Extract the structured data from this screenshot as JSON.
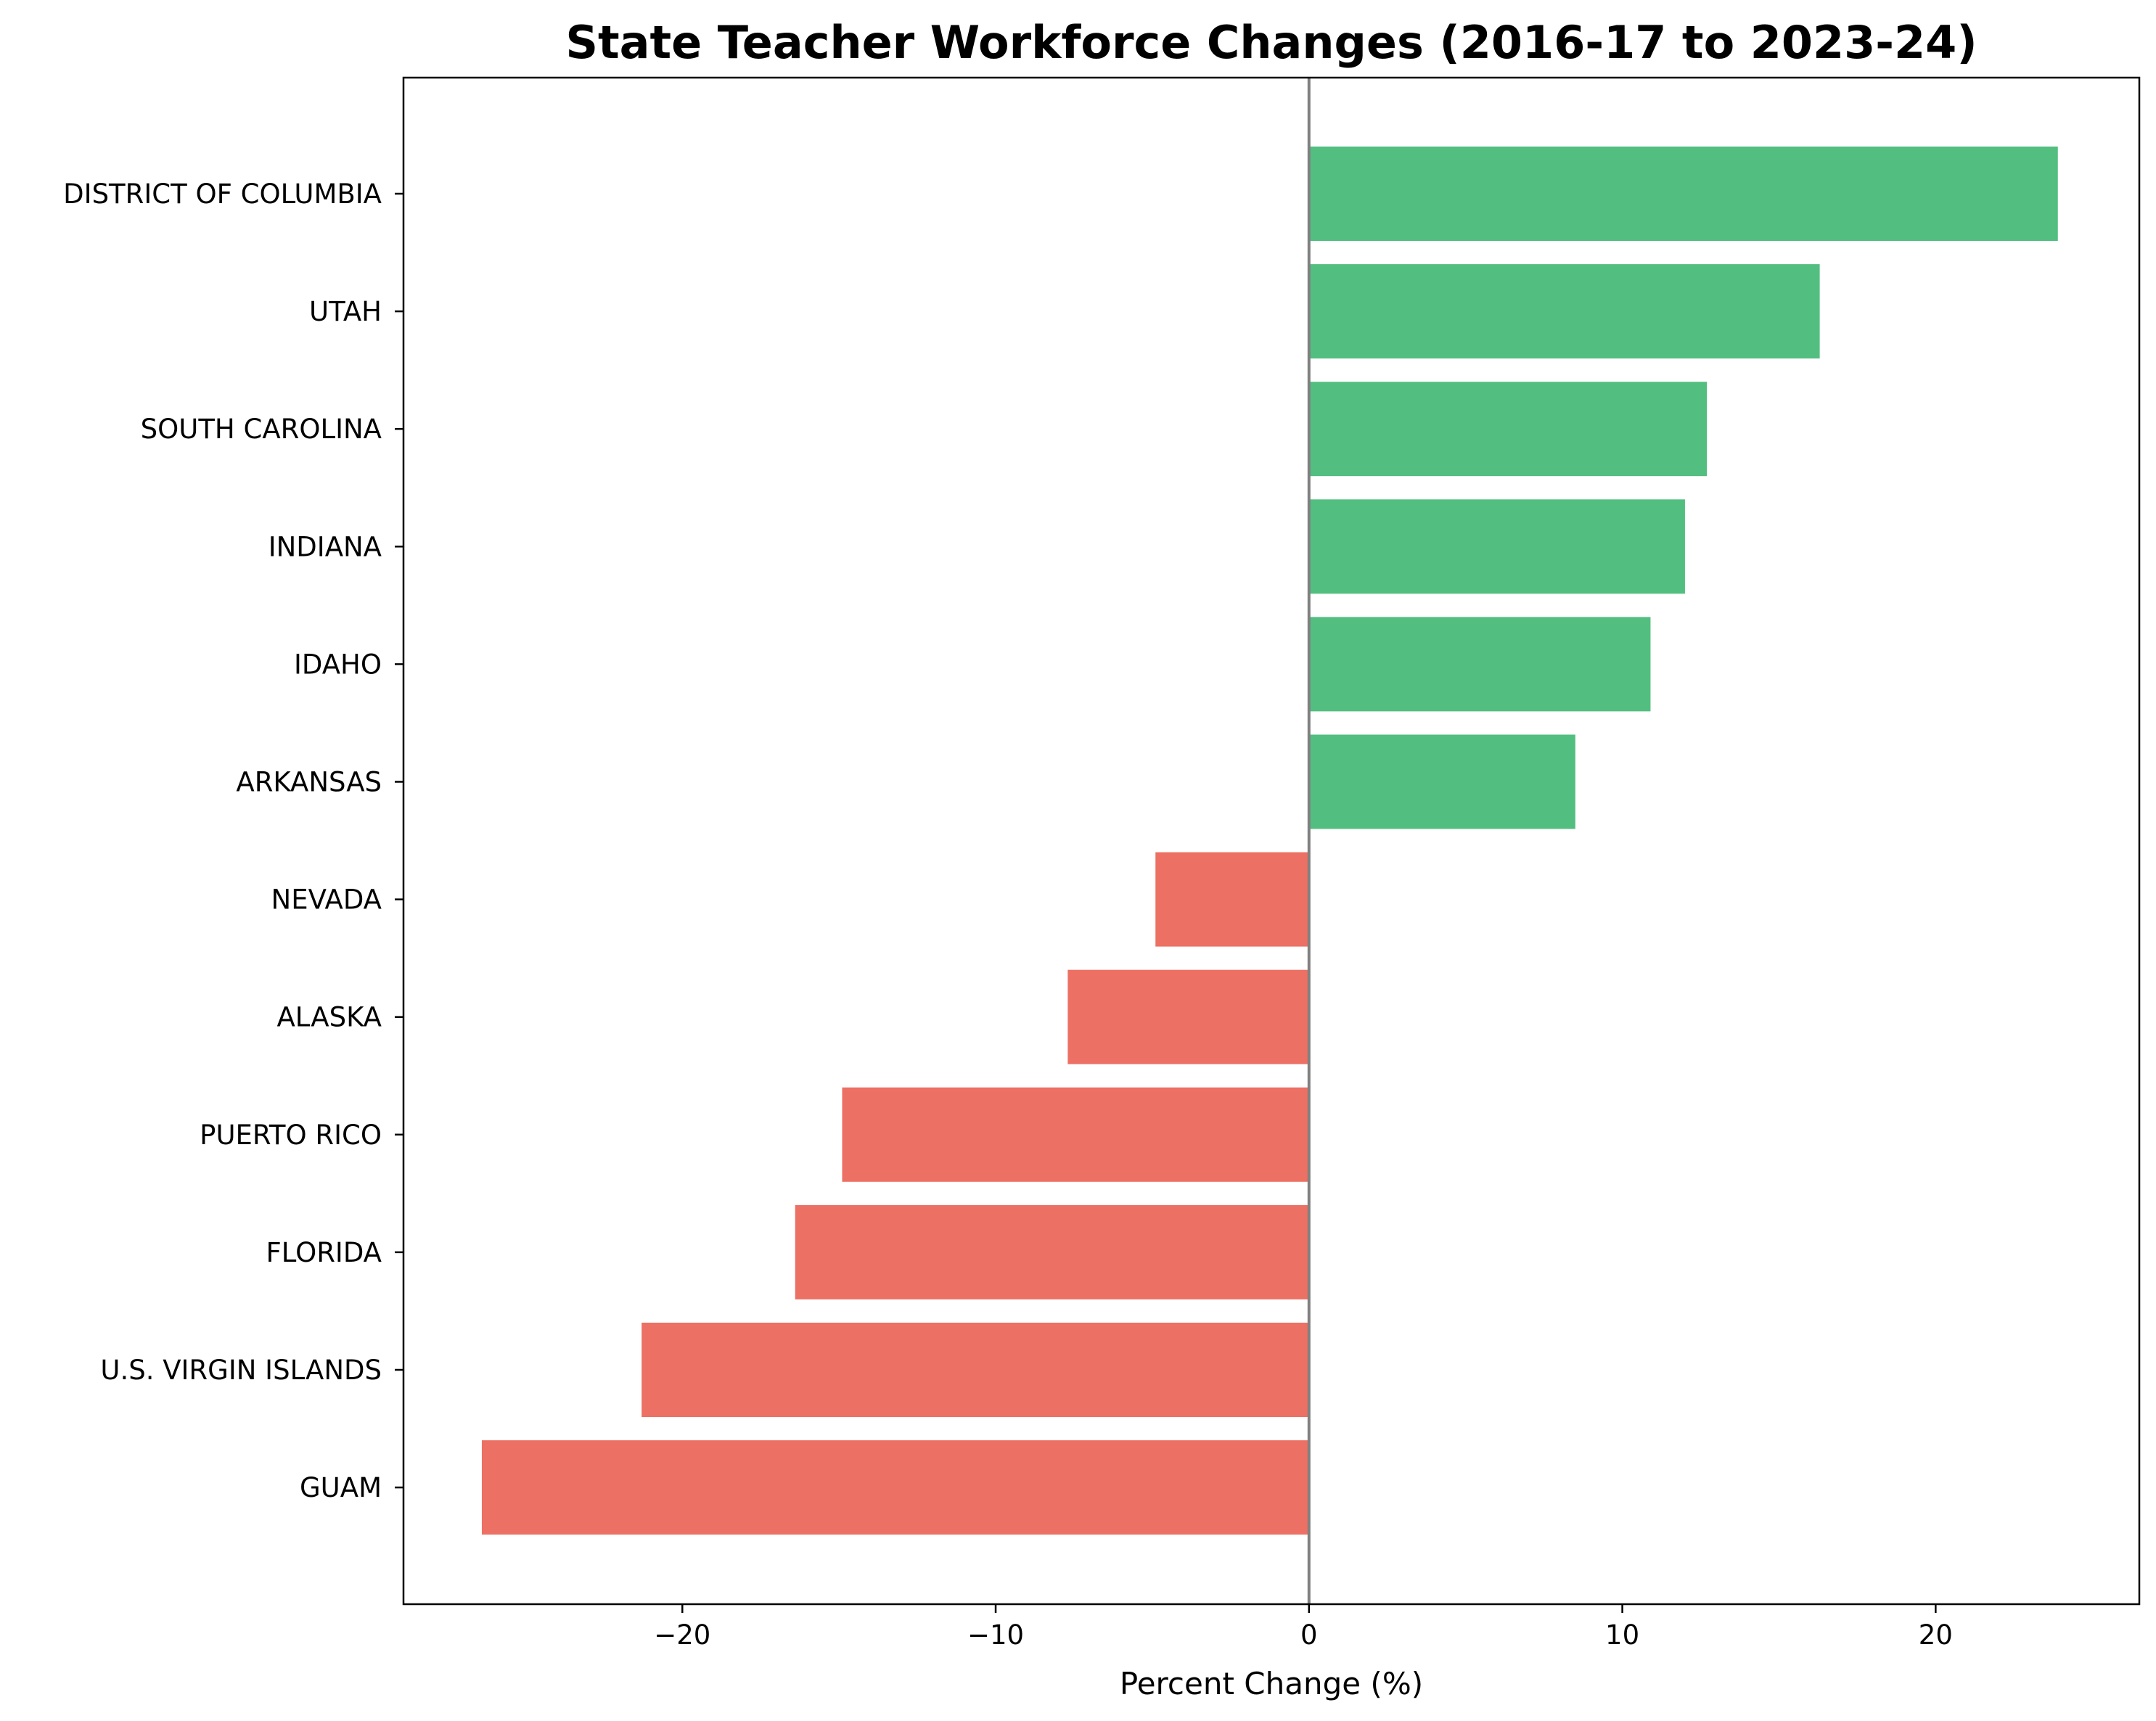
{
  "chart_data": {
    "type": "bar",
    "orientation": "horizontal",
    "title": "State Teacher Workforce Changes (2016-17 to 2023-24)",
    "xlabel": "Percent Change (%)",
    "ylabel": "",
    "xlim": [
      -28.9,
      26.5
    ],
    "xticks": [
      -20,
      -10,
      0,
      10,
      20
    ],
    "xtick_labels": [
      "−20",
      "−10",
      "0",
      "10",
      "20"
    ],
    "grid": false,
    "legend": "none",
    "reference_line_x": 0,
    "categories": [
      "DISTRICT OF COLUMBIA",
      "UTAH",
      "SOUTH CAROLINA",
      "INDIANA",
      "IDAHO",
      "ARKANSAS",
      "NEVADA",
      "ALASKA",
      "PUERTO RICO",
      "FLORIDA",
      "U.S. VIRGIN ISLANDS",
      "GUAM"
    ],
    "values": [
      23.9,
      16.3,
      12.7,
      12.0,
      10.9,
      8.5,
      -4.9,
      -7.7,
      -14.9,
      -16.4,
      -21.3,
      -26.4
    ],
    "colors": {
      "positive": "#52be80",
      "negative": "#ec7063",
      "zero_line": "#808080",
      "axis": "#000000"
    }
  }
}
